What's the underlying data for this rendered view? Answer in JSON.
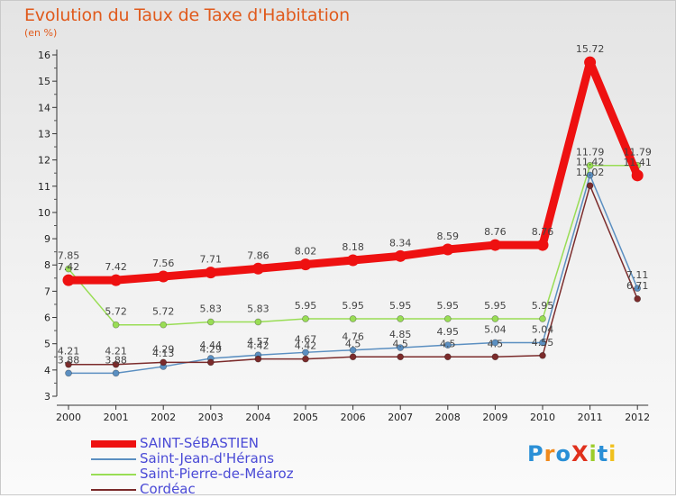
{
  "title": "Evolution du Taux de Taxe d'Habitation",
  "subtitle": "(en %)",
  "logo": "ProXiti",
  "chart_data": {
    "type": "line",
    "title": "Evolution du Taux de Taxe d'Habitation",
    "ylabel": "(en %)",
    "xlabel": "",
    "x": [
      "2000",
      "2001",
      "2002",
      "2003",
      "2004",
      "2005",
      "2006",
      "2007",
      "2008",
      "2009",
      "2010",
      "2011",
      "2012"
    ],
    "ylim": [
      3,
      16
    ],
    "yticks": [
      "3",
      "4",
      "5",
      "6",
      "7",
      "8",
      "9",
      "10",
      "11",
      "12",
      "13",
      "14",
      "15",
      "16"
    ],
    "grid": false,
    "legend_position": "bottom-left",
    "series": [
      {
        "name": "SAINT-SéBASTIEN",
        "color": "#ee1111",
        "values": [
          7.42,
          7.42,
          7.56,
          7.71,
          7.86,
          8.02,
          8.18,
          8.34,
          8.59,
          8.76,
          8.76,
          15.72,
          11.41
        ],
        "labels": [
          "7.42",
          "7.42",
          "7.56",
          "7.71",
          "7.86",
          "8.02",
          "8.18",
          "8.34",
          "8.59",
          "8.76",
          "8.76",
          "15.72",
          "11.41"
        ]
      },
      {
        "name": "Saint-Jean-d'Hérans",
        "color": "#5b8fc1",
        "values": [
          3.88,
          3.88,
          4.13,
          4.44,
          4.57,
          4.67,
          4.76,
          4.85,
          4.95,
          5.04,
          5.04,
          11.42,
          7.11
        ],
        "labels": [
          "3.88",
          "3.88",
          "4.13",
          "4.44",
          "4.57",
          "4.67",
          "4.76",
          "4.85",
          "4.95",
          "5.04",
          "5.04",
          "11.42",
          "7.11"
        ]
      },
      {
        "name": "Saint-Pierre-de-Méaroz",
        "color": "#99dd55",
        "values": [
          7.85,
          5.72,
          5.72,
          5.83,
          5.83,
          5.95,
          5.95,
          5.95,
          5.95,
          5.95,
          5.95,
          11.79,
          11.79
        ],
        "labels": [
          "7.85",
          "5.72",
          "5.72",
          "5.83",
          "5.83",
          "5.95",
          "5.95",
          "5.95",
          "5.95",
          "5.95",
          "5.95",
          "11.79",
          "11.79"
        ]
      },
      {
        "name": "Cordéac",
        "color": "#7b2b2b",
        "values": [
          4.21,
          4.21,
          4.29,
          4.29,
          4.42,
          4.42,
          4.5,
          4.5,
          4.5,
          4.5,
          4.55,
          11.02,
          6.71
        ],
        "labels": [
          "4.21",
          "4.21",
          "4.29",
          "4.29",
          "4.42",
          "4.42",
          "4.5",
          "4.5",
          "4.5",
          "4.5",
          "4.55",
          "11.02",
          "6.71"
        ]
      }
    ]
  }
}
